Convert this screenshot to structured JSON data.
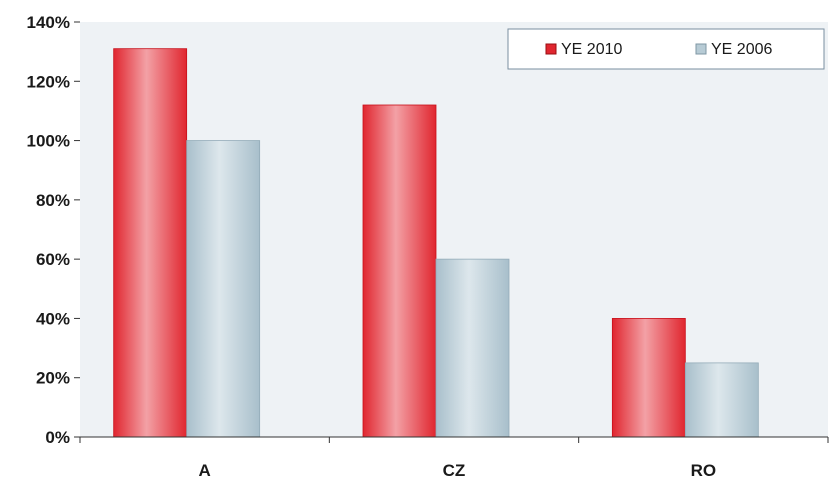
{
  "chart_data": {
    "type": "bar",
    "categories": [
      "A",
      "CZ",
      "RO"
    ],
    "series": [
      {
        "name": "YE 2010",
        "values": [
          131,
          112,
          40
        ],
        "color": "#e0262f"
      },
      {
        "name": "YE 2006",
        "values": [
          100,
          60,
          25
        ],
        "color": "#a8bfcb"
      }
    ],
    "ylim": [
      0,
      140
    ],
    "yticks": [
      0,
      20,
      40,
      60,
      80,
      100,
      120,
      140
    ],
    "ytick_labels": [
      "0%",
      "20%",
      "40%",
      "60%",
      "80%",
      "100%",
      "120%",
      "140%"
    ],
    "legend_position": "top-right",
    "grid": false,
    "plot_background": "#eef2f5"
  }
}
